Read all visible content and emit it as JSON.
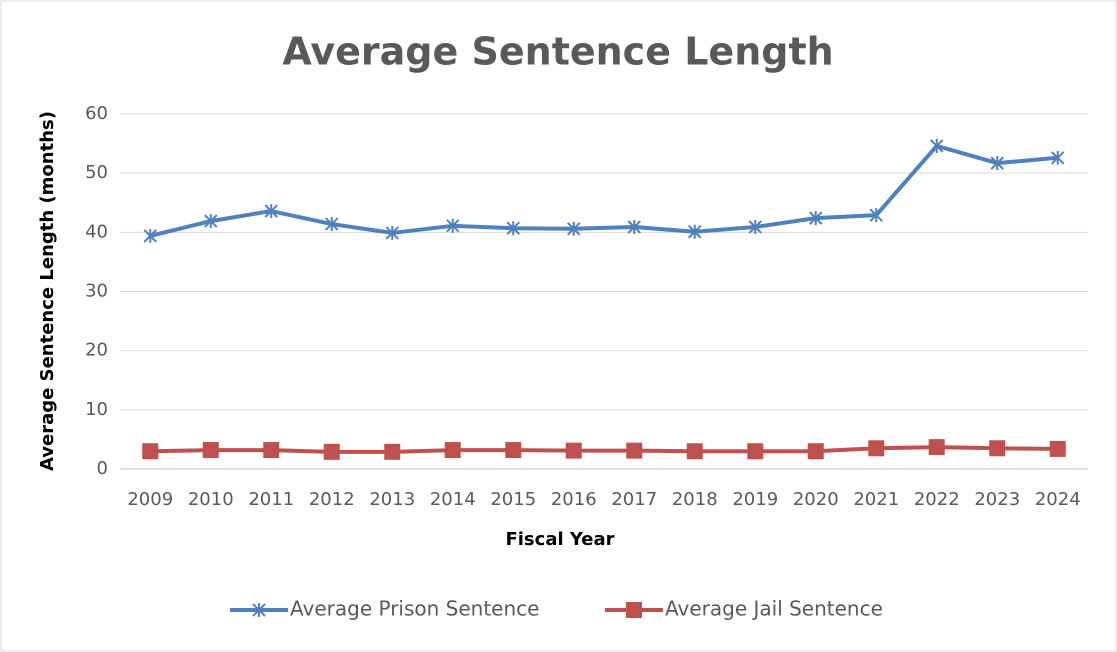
{
  "chart_data": {
    "type": "line",
    "title": "Average Sentence Length",
    "xlabel": "Fiscal Year",
    "ylabel": "Average Sentence Length (months)",
    "categories": [
      "2009",
      "2010",
      "2011",
      "2012",
      "2013",
      "2014",
      "2015",
      "2016",
      "2017",
      "2018",
      "2019",
      "2020",
      "2021",
      "2022",
      "2023",
      "2024"
    ],
    "series": [
      {
        "name": "Average Prison Sentence",
        "color": "#4f81bd",
        "marker": "star",
        "values": [
          39.4,
          41.9,
          43.6,
          41.4,
          39.9,
          41.1,
          40.7,
          40.6,
          40.9,
          40.1,
          40.9,
          42.4,
          42.9,
          54.6,
          51.7,
          52.6
        ]
      },
      {
        "name": "Average Jail Sentence",
        "color": "#c0504d",
        "marker": "square",
        "values": [
          3.0,
          3.2,
          3.2,
          2.9,
          2.9,
          3.2,
          3.2,
          3.1,
          3.1,
          3.0,
          3.0,
          3.0,
          3.5,
          3.7,
          3.5,
          3.4
        ]
      }
    ],
    "ylim": [
      0,
      60
    ],
    "yticks": [
      0,
      10,
      20,
      30,
      40,
      50,
      60
    ],
    "grid": true,
    "legend": "bottom"
  }
}
